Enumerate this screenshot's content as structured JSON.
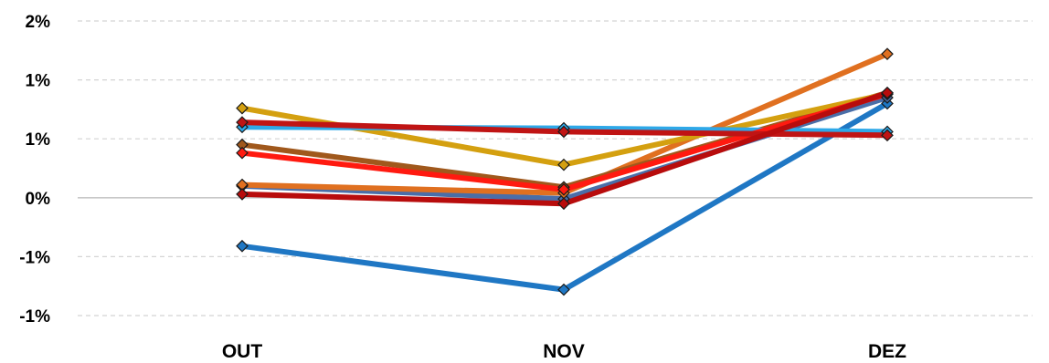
{
  "chart_data": {
    "type": "line",
    "categories": [
      "OUT",
      "NOV",
      "DEZ"
    ],
    "y_tick_labels": [
      "2%",
      "1%",
      "1%",
      "0%",
      "-1%",
      "-1%"
    ],
    "y_tick_values": [
      1.5,
      1.0,
      0.5,
      0.0,
      -0.5,
      -1.0
    ],
    "ylim": [
      -1.0,
      1.5
    ],
    "grid": true,
    "legend": "none",
    "series": [
      {
        "values": [
          -0.41,
          -0.78,
          0.8
        ],
        "color": "#1f77c4"
      },
      {
        "values": [
          0.1,
          -0.01,
          0.85
        ],
        "color": "#4a6ea8"
      },
      {
        "values": [
          0.11,
          0.04,
          1.22
        ],
        "color": "#e07020"
      },
      {
        "values": [
          0.45,
          0.09,
          0.89
        ],
        "color": "#a0581c"
      },
      {
        "values": [
          0.76,
          0.28,
          0.88
        ],
        "color": "#d4a010"
      },
      {
        "values": [
          0.6,
          0.59,
          0.56
        ],
        "color": "#2ea8e8"
      },
      {
        "values": [
          0.38,
          0.07,
          0.88
        ],
        "color": "#ff1a10"
      },
      {
        "values": [
          0.64,
          0.56,
          0.53
        ],
        "color": "#c01414"
      },
      {
        "values": [
          0.03,
          -0.05,
          0.89
        ],
        "color": "#b80c0c"
      }
    ]
  }
}
